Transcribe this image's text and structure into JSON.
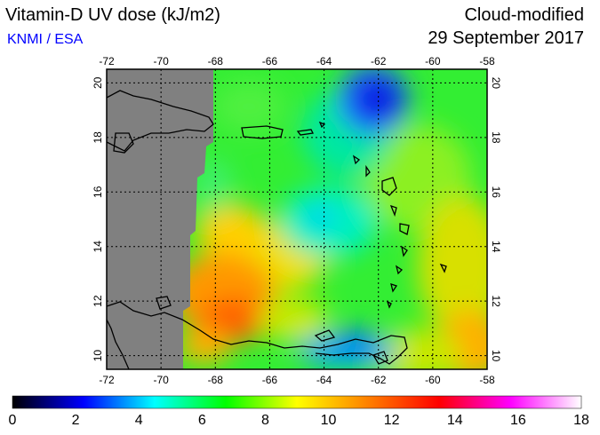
{
  "header": {
    "title": "Vitamin-D UV dose (kJ/m2)",
    "credit": "KNMI / ESA",
    "product": "Cloud-modified",
    "date": "29 September 2017"
  },
  "map": {
    "lon_range": [
      -72,
      -58
    ],
    "lat_range": [
      9.5,
      20.5
    ],
    "lon_ticks": [
      "-72",
      "-70",
      "-68",
      "-66",
      "-64",
      "-62",
      "-60",
      "-58"
    ],
    "lat_ticks": [
      "10",
      "12",
      "14",
      "16",
      "18",
      "20"
    ],
    "no_data_color": "#808080",
    "gridlines": true
  },
  "colorbar": {
    "min": 0,
    "max": 18,
    "tick_labels": [
      "0",
      "2",
      "4",
      "6",
      "8",
      "10",
      "12",
      "14",
      "16",
      "18"
    ],
    "colors": [
      "#000000",
      "#0000ff",
      "#00ffff",
      "#00ff00",
      "#ffff00",
      "#ff8000",
      "#ff0000",
      "#ff00ff",
      "#ffffff"
    ]
  }
}
